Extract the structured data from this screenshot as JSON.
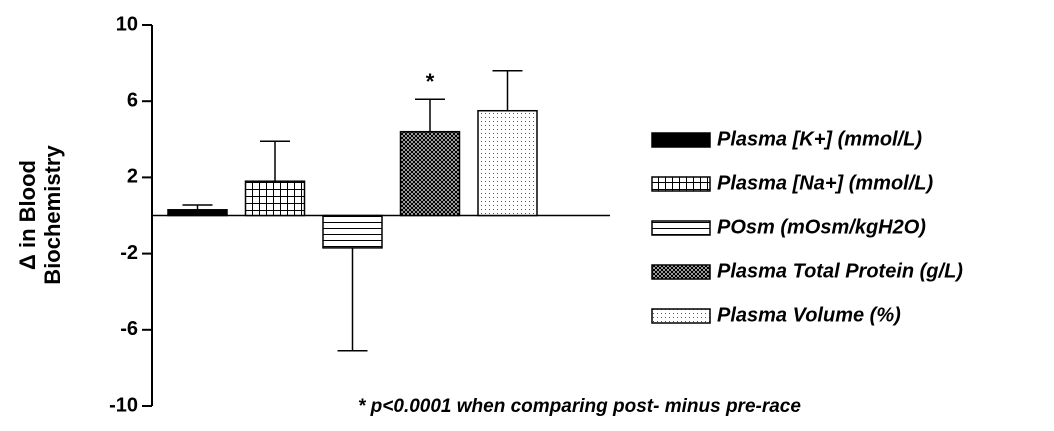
{
  "chart_data": {
    "type": "bar",
    "y_label": [
      "Δ  in Blood",
      "Biochemistry"
    ],
    "ylim": [
      -10,
      10
    ],
    "yticks": [
      -10,
      -6,
      -2,
      2,
      6,
      10
    ],
    "series": [
      {
        "name": "Plasma [K+] (mmol/L)",
        "color": "#000000",
        "pattern": "solid",
        "values": [
          0.3
        ],
        "errors": [
          0.25
        ]
      },
      {
        "name": "Plasma [Na+] (mmol/L)",
        "color": "#000000",
        "pattern": "grid",
        "values": [
          1.8
        ],
        "errors": [
          2.1
        ]
      },
      {
        "name": "POsm (mOsm/kgH2O)",
        "color": "#000000",
        "pattern": "hlines",
        "values": [
          -1.7
        ],
        "errors": [
          5.4
        ]
      },
      {
        "name": "Plasma Total Protein (g/L)",
        "color": "#000000",
        "pattern": "crosshatch",
        "values": [
          4.4
        ],
        "errors": [
          1.7
        ],
        "annotation": "*"
      },
      {
        "name": "Plasma Volume (%)",
        "color": "#000000",
        "pattern": "dots",
        "values": [
          5.5
        ],
        "errors": [
          2.1
        ]
      }
    ],
    "footnote": "* p<0.0001 when comparing post- minus pre-race"
  }
}
